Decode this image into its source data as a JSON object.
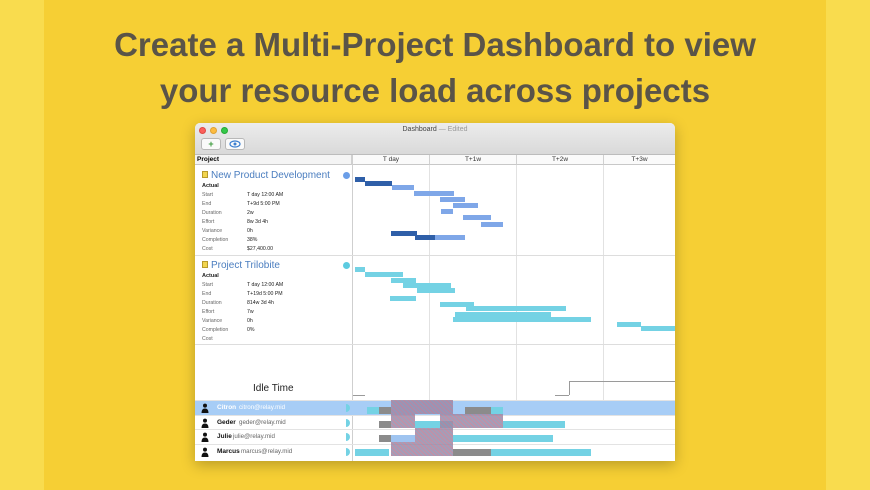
{
  "headline": {
    "line1": "Create a Multi-Project Dashboard to view",
    "line2": "your resource load across projects"
  },
  "window": {
    "title": "Dashboard",
    "edited": "— Edited",
    "toolbar": {
      "add_label": "+",
      "view_icon": "eye-icon"
    }
  },
  "columns": {
    "project": "Project",
    "timeline": [
      "T day",
      "T+1w",
      "T+2w",
      "T+3w"
    ]
  },
  "projects": [
    {
      "name": "New Product Development",
      "section": "Actual",
      "fields": [
        {
          "label": "Start",
          "value": "T day 12:00 AM"
        },
        {
          "label": "End",
          "value": "T+9d 5:00 PM"
        },
        {
          "label": "Duration",
          "value": "2w"
        },
        {
          "label": "Effort",
          "value": "8w 3d 4h"
        },
        {
          "label": "Variance",
          "value": "0h"
        },
        {
          "label": "Completion",
          "value": "38%"
        },
        {
          "label": "Cost",
          "value": "$27,400.00"
        }
      ],
      "color": "#6b9ee8"
    },
    {
      "name": "Project Trilobite",
      "section": "Actual",
      "fields": [
        {
          "label": "Start",
          "value": "T day 12:00 AM"
        },
        {
          "label": "End",
          "value": "T+19d 5:00 PM"
        },
        {
          "label": "Duration",
          "value": "814w 3d 4h"
        },
        {
          "label": "Effort",
          "value": "7w"
        },
        {
          "label": "Variance",
          "value": "0h"
        },
        {
          "label": "Completion",
          "value": "0%"
        },
        {
          "label": "Cost",
          "value": ""
        }
      ],
      "color": "#5ccbe0"
    }
  ],
  "idle": {
    "label": "Idle Time"
  },
  "resources": [
    {
      "name": "Citron",
      "email": "citron@relay.mid",
      "selected": true
    },
    {
      "name": "Geder",
      "email": "geder@relay.mid",
      "selected": false
    },
    {
      "name": "Julie",
      "email": "julie@relay.mid",
      "selected": false
    },
    {
      "name": "Marcus",
      "email": "marcus@relay.mid",
      "selected": false
    }
  ],
  "colors": {
    "background": "#f6cf34",
    "accent_blue": "#2f5fa8",
    "light_blue": "#7fa7e8",
    "cyan": "#74d2e4",
    "selection": "#a7cdf6"
  }
}
